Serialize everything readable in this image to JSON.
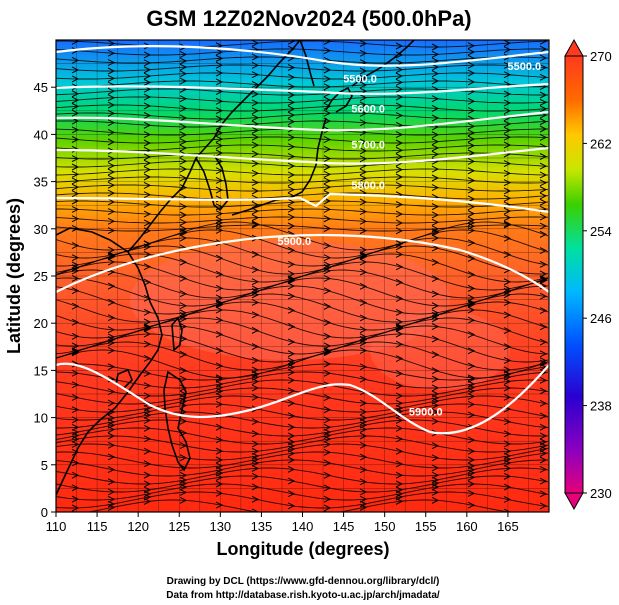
{
  "title": "GSM 12Z02Nov2024 (500.0hPa)",
  "xlabel": "Longitude (degrees)",
  "ylabel": "Latitude (degrees)",
  "credits": [
    "Drawing by DCL (https://www.gfd-dennou.org/library/dcl/)",
    "Data from http://database.rish.kyoto-u.ac.jp/arch/jmadata/"
  ],
  "map": {
    "lon_range": [
      110,
      170
    ],
    "lat_range": [
      0,
      50
    ],
    "lon_ticks": [
      110,
      115,
      120,
      125,
      130,
      135,
      140,
      145,
      150,
      155,
      160,
      165
    ],
    "lat_ticks": [
      0,
      5,
      10,
      15,
      20,
      25,
      30,
      35,
      40,
      45
    ],
    "field": "temperature shading with wind streamlines and geopotential height contours"
  },
  "colorbar": {
    "min": 230,
    "max": 270,
    "ticks": [
      270,
      262,
      254,
      246,
      238,
      230
    ],
    "colors": [
      "#e6007a",
      "#2a00d0",
      "#0050ff",
      "#00b8ff",
      "#00e0a0",
      "#3ad000",
      "#c8e600",
      "#ffc800",
      "#ff6a00",
      "#ff3a1e"
    ]
  },
  "contours": [
    {
      "label": "5900.0",
      "lon": 139,
      "lat": 28.3
    },
    {
      "label": "5900.0",
      "lon": 155,
      "lat": 10.2
    },
    {
      "label": "5800.0",
      "lon": 148,
      "lat": 34.2
    },
    {
      "label": "5700.0",
      "lon": 148,
      "lat": 38.5
    },
    {
      "label": "5600.0",
      "lon": 148,
      "lat": 42.3
    },
    {
      "label": "5500.0",
      "lon": 147,
      "lat": 45.5
    },
    {
      "label": "5500.0",
      "lon": 167,
      "lat": 46.8
    }
  ],
  "colors": {
    "contour": "#ffffff",
    "coast": "#000000",
    "stream": "#000000"
  }
}
